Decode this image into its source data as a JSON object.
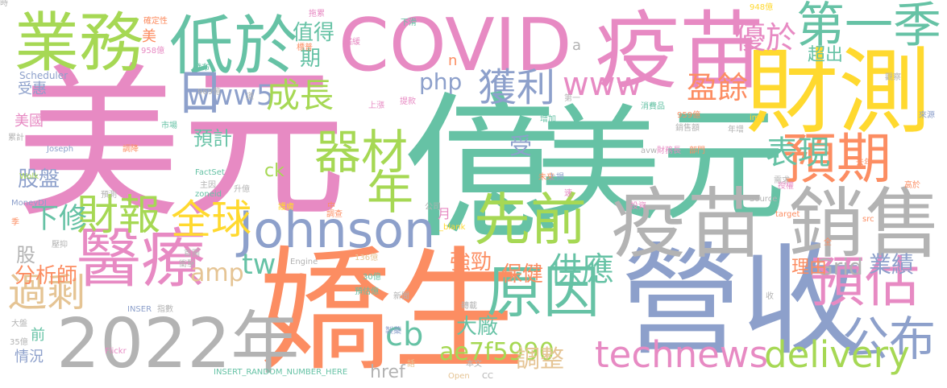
{
  "palette": {
    "pink": "#e78ac3",
    "green": "#66c2a5",
    "blue": "#8da0cb",
    "lime": "#a6d854",
    "orange": "#fc8d62",
    "yellow": "#ffd92f",
    "gray": "#b3b3b3",
    "tan": "#e5c494"
  },
  "words": [
    {
      "text": "美元",
      "color": "pink"
    },
    {
      "text": "億",
      "color": "green"
    },
    {
      "text": "美元",
      "color": "green"
    },
    {
      "text": "嬌生",
      "color": "orange"
    },
    {
      "text": "營收",
      "color": "blue"
    },
    {
      "text": "財測",
      "color": "yellow"
    },
    {
      "text": "疫苗",
      "color": "pink"
    },
    {
      "text": "COVID",
      "color": "pink"
    },
    {
      "text": "疫苗 銷售",
      "color": "gray"
    },
    {
      "text": "2022年",
      "color": "gray"
    },
    {
      "text": "業務",
      "color": "lime"
    },
    {
      "text": "低於",
      "color": "green"
    },
    {
      "text": "Johnson",
      "color": "blue"
    },
    {
      "text": "醫療",
      "color": "pink"
    },
    {
      "text": "先前",
      "color": "lime"
    },
    {
      "text": "原因",
      "color": "green"
    },
    {
      "text": "預期",
      "color": "orange"
    },
    {
      "text": "預估",
      "color": "pink"
    },
    {
      "text": "第一季",
      "color": "green"
    },
    {
      "text": "公布",
      "color": "blue"
    },
    {
      "text": "財報",
      "color": "lime"
    },
    {
      "text": "全球",
      "color": "yellow"
    },
    {
      "text": "器材",
      "color": "lime"
    },
    {
      "text": "technews",
      "color": "pink"
    },
    {
      "text": "delivery",
      "color": "lime"
    },
    {
      "text": "www5",
      "color": "blue"
    },
    {
      "text": "成長",
      "color": "lime"
    },
    {
      "text": "www",
      "color": "pink"
    },
    {
      "text": "獲利",
      "color": "blue"
    },
    {
      "text": "日",
      "color": "blue"
    },
    {
      "text": "年",
      "color": "lime"
    },
    {
      "text": "過剩",
      "color": "tan"
    },
    {
      "text": "表現",
      "color": "green"
    },
    {
      "text": "供應",
      "color": "green"
    },
    {
      "text": "優於",
      "color": "pink"
    },
    {
      "text": "盈餘",
      "color": "orange"
    },
    {
      "text": "下修",
      "color": "green"
    },
    {
      "text": "amp",
      "color": "tan"
    },
    {
      "text": "tw",
      "color": "green"
    },
    {
      "text": "cb",
      "color": "green"
    },
    {
      "text": "ae7f5990",
      "color": "lime"
    },
    {
      "text": "Grid",
      "color": "gray"
    },
    {
      "text": "業績",
      "color": "blue"
    },
    {
      "text": "php",
      "color": "blue"
    },
    {
      "text": "值得",
      "color": "green"
    },
    {
      "text": "期",
      "color": "green"
    },
    {
      "text": "預計",
      "color": "green"
    },
    {
      "text": "受",
      "color": "blue"
    },
    {
      "text": "股盤",
      "color": "blue"
    },
    {
      "text": "分析師",
      "color": "orange"
    },
    {
      "text": "股",
      "color": "gray"
    },
    {
      "text": "強勁",
      "color": "orange"
    },
    {
      "text": "保健",
      "color": "orange"
    },
    {
      "text": "調整",
      "color": "tan"
    },
    {
      "text": "大廠",
      "color": "green"
    },
    {
      "text": "href",
      "color": "gray"
    },
    {
      "text": "超出",
      "color": "green"
    },
    {
      "text": "美國",
      "color": "pink"
    },
    {
      "text": "受惠",
      "color": "blue"
    },
    {
      "text": "美",
      "color": "orange"
    },
    {
      "text": "情況",
      "color": "blue"
    },
    {
      "text": "前",
      "color": "green"
    },
    {
      "text": "理由",
      "color": "orange"
    },
    {
      "text": "ck",
      "color": "lime"
    },
    {
      "text": "月",
      "color": "pink"
    },
    {
      "text": "a",
      "color": "gray"
    },
    {
      "text": "n",
      "color": "orange"
    },
    {
      "text": "Scheduler",
      "color": "blue"
    },
    {
      "text": "Joseph",
      "color": "blue"
    },
    {
      "text": "FactSet",
      "color": "green"
    },
    {
      "text": "zoneid",
      "color": "green"
    },
    {
      "text": "Wolk",
      "color": "lime"
    },
    {
      "text": "MoneyDJ",
      "color": "blue"
    },
    {
      "text": "Source",
      "color": "gray"
    },
    {
      "text": "target",
      "color": "orange"
    },
    {
      "text": "Flickr",
      "color": "pink"
    },
    {
      "text": "Open",
      "color": "tan"
    },
    {
      "text": "CC",
      "color": "gray"
    },
    {
      "text": "INSERT_RANDOM_NUMBER_HERE",
      "color": "green"
    },
    {
      "text": "Engine",
      "color": "gray"
    },
    {
      "text": "INSER",
      "color": "blue"
    },
    {
      "text": "_blank",
      "color": "yellow"
    },
    {
      "text": "img",
      "color": "yellow"
    },
    {
      "text": "avw",
      "color": "gray"
    },
    {
      "text": "src",
      "color": "orange"
    },
    {
      "text": "958億",
      "color": "pink"
    },
    {
      "text": "948億",
      "color": "yellow"
    },
    {
      "text": "969億",
      "color": "gray"
    },
    {
      "text": "959億",
      "color": "orange"
    },
    {
      "text": "136億",
      "color": "tan"
    },
    {
      "text": "30億",
      "color": "green"
    },
    {
      "text": "35億",
      "color": "gray"
    },
    {
      "text": "確定性",
      "color": "orange"
    },
    {
      "text": "拖累",
      "color": "pink"
    },
    {
      "text": "下滑",
      "color": "green"
    },
    {
      "text": "趨緩",
      "color": "pink"
    },
    {
      "text": "標普",
      "color": "orange"
    },
    {
      "text": "發布",
      "color": "green"
    },
    {
      "text": "上漲",
      "color": "pink"
    },
    {
      "text": "提款",
      "color": "pink"
    },
    {
      "text": "第一",
      "color": "gray"
    },
    {
      "text": "增加",
      "color": "green"
    },
    {
      "text": "消費品",
      "color": "green"
    },
    {
      "text": "觀察",
      "color": "gray"
    },
    {
      "text": "來源",
      "color": "blue"
    },
    {
      "text": "市場",
      "color": "green"
    },
    {
      "text": "累計",
      "color": "gray"
    },
    {
      "text": "調降",
      "color": "orange"
    },
    {
      "text": "財務長",
      "color": "pink"
    },
    {
      "text": "銷售額",
      "color": "gray"
    },
    {
      "text": "部門",
      "color": "orange"
    },
    {
      "text": "年增",
      "color": "gray"
    },
    {
      "text": "去年",
      "color": "orange"
    },
    {
      "text": "主因",
      "color": "gray"
    },
    {
      "text": "未來",
      "color": "orange"
    },
    {
      "text": "上揚",
      "color": "blue"
    },
    {
      "text": "升億",
      "color": "gray"
    },
    {
      "text": "護膚",
      "color": "yellow"
    },
    {
      "text": "中",
      "color": "orange"
    },
    {
      "text": "速",
      "color": "pink"
    },
    {
      "text": "公司",
      "color": "gray"
    },
    {
      "text": "投資",
      "color": "pink"
    },
    {
      "text": "授權",
      "color": "pink"
    },
    {
      "text": "高於",
      "color": "orange"
    },
    {
      "text": "需求",
      "color": "gray"
    },
    {
      "text": "預測",
      "color": "gray"
    },
    {
      "text": "季",
      "color": "orange"
    },
    {
      "text": "調查",
      "color": "orange"
    },
    {
      "text": "壓抑",
      "color": "gray"
    },
    {
      "text": "首圖",
      "color": "gray"
    },
    {
      "text": "衝擊",
      "color": "gray"
    },
    {
      "text": "指數",
      "color": "gray"
    },
    {
      "text": "預估億",
      "color": "green"
    },
    {
      "text": "新聞",
      "color": "gray"
    },
    {
      "text": "轉載",
      "color": "gray"
    },
    {
      "text": "收",
      "color": "gray"
    },
    {
      "text": "全",
      "color": "orange"
    },
    {
      "text": "製藥",
      "color": "blue"
    },
    {
      "text": "話",
      "color": "tan"
    },
    {
      "text": "本文",
      "color": "gray"
    },
    {
      "text": "大盤",
      "color": "gray"
    },
    {
      "text": "道",
      "color": "gray"
    },
    {
      "text": "時",
      "color": "gray"
    }
  ]
}
